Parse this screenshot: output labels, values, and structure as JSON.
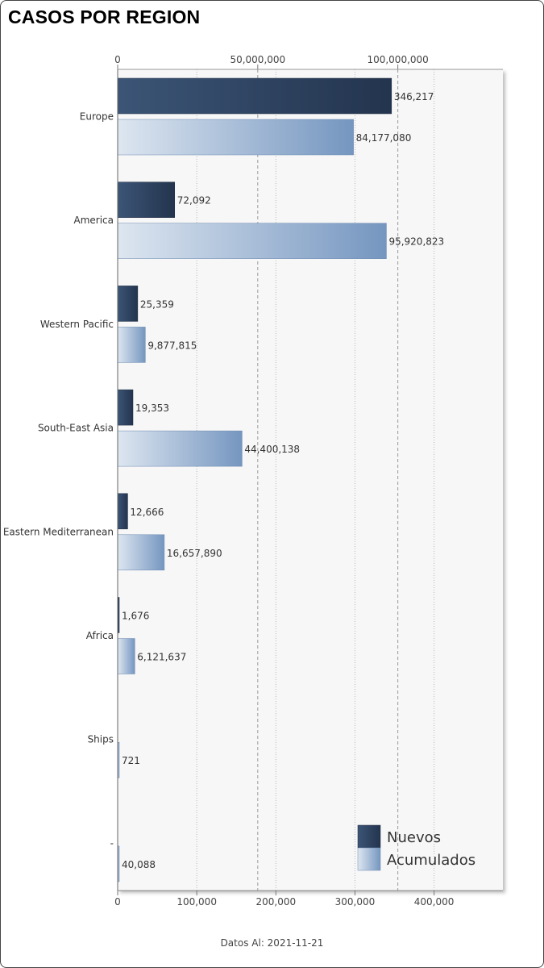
{
  "title": "CASOS POR REGION",
  "footer": "Datos Al: 2021-11-21",
  "chart_data": {
    "type": "bar",
    "orientation": "horizontal",
    "title": "CASOS POR REGION",
    "categories": [
      "Europe",
      "America",
      "Western Pacific",
      "South-East Asia",
      "Eastern Mediterranean",
      "Africa",
      "Ships",
      "-"
    ],
    "series": [
      {
        "name": "Nuevos",
        "axis": "bottom",
        "values": [
          346217,
          72092,
          25359,
          19353,
          12666,
          1676,
          0,
          0
        ],
        "labels": [
          "346,217",
          "72,092",
          "25,359",
          "19,353",
          "12,666",
          "1,676",
          null,
          null
        ],
        "color": "#2a3f5f"
      },
      {
        "name": "Acumulados",
        "axis": "top",
        "values": [
          84177080,
          95920823,
          9877815,
          44400138,
          16657890,
          6121637,
          721,
          40088
        ],
        "labels": [
          "84,177,080",
          "95,920,823",
          "9,877,815",
          "44,400,138",
          "16,657,890",
          "6,121,637",
          "721",
          "40,088"
        ],
        "color": "#7a9cc6"
      }
    ],
    "top_axis": {
      "ticks": [
        0,
        50000000,
        100000000
      ],
      "tick_labels": [
        "0",
        "50,000,000",
        "100,000,000"
      ],
      "range": [
        0,
        137500000
      ]
    },
    "bottom_axis": {
      "ticks": [
        0,
        100000,
        200000,
        300000,
        400000
      ],
      "tick_labels": [
        "0",
        "100,000",
        "200,000",
        "300,000",
        "400,000"
      ],
      "range": [
        0,
        487000
      ]
    },
    "grid": true,
    "legend": {
      "position": "bottom-right",
      "entries": [
        "Nuevos",
        "Acumulados"
      ]
    }
  }
}
